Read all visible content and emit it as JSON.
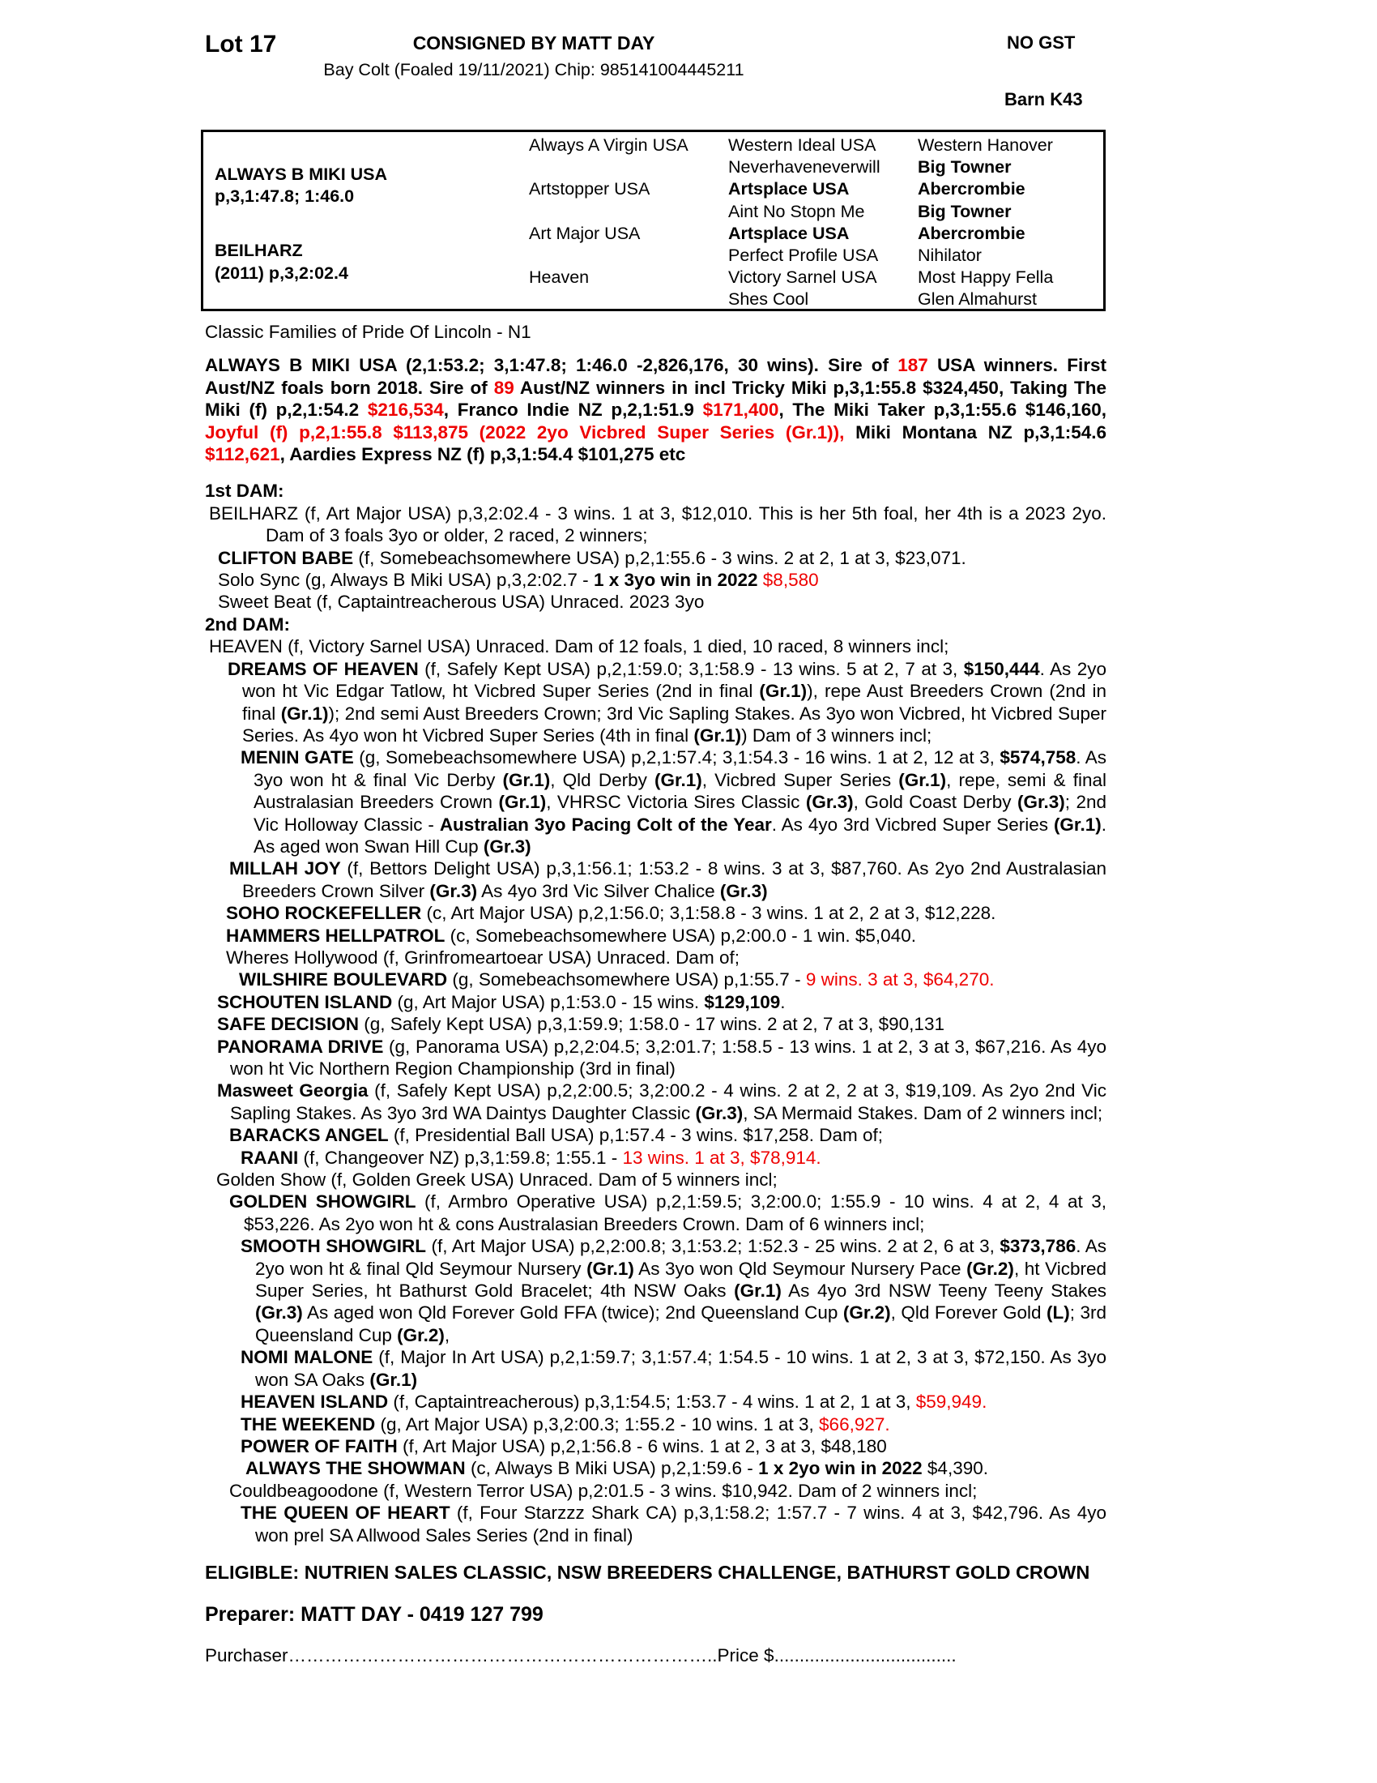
{
  "colors": {
    "red": "#ee0000",
    "text": "#000000"
  },
  "header": {
    "lot": "Lot 17",
    "consigned": "CONSIGNED BY MATT DAY",
    "foal_info": "Bay Colt (Foaled 19/11/2021) Chip: 985141004445211",
    "no_gst": "NO GST",
    "barn": "Barn K43"
  },
  "pedigree": {
    "sire": {
      "name": "ALWAYS B MIKI USA",
      "record": "p,3,1:47.8; 1:46.0"
    },
    "dam": {
      "name": "BEILHARZ",
      "record": "(2011) p,3,2:02.4"
    },
    "gen2": [
      "Always A Virgin USA",
      "Artstopper USA",
      "Art Major USA",
      "Heaven"
    ],
    "gen3": [
      {
        "name": "Western Ideal USA",
        "b": false
      },
      {
        "name": "Neverhaveneverwill",
        "b": false
      },
      {
        "name": "Artsplace USA",
        "b": true
      },
      {
        "name": "Aint No Stopn Me",
        "b": false
      },
      {
        "name": "Artsplace USA",
        "b": true
      },
      {
        "name": "Perfect Profile USA",
        "b": false
      },
      {
        "name": "Victory Sarnel USA",
        "b": false
      },
      {
        "name": "Shes Cool",
        "b": false
      }
    ],
    "gen4": [
      {
        "name": "Western Hanover",
        "b": false
      },
      {
        "name": "Big Towner",
        "b": true
      },
      {
        "name": "Abercrombie",
        "b": true
      },
      {
        "name": "Big Towner",
        "b": true
      },
      {
        "name": "Abercrombie",
        "b": true
      },
      {
        "name": "Nihilator",
        "b": false
      },
      {
        "name": "Most Happy Fella",
        "b": false
      },
      {
        "name": "Glen Almahurst",
        "b": false
      }
    ]
  },
  "entries": [
    {
      "name": "family-note",
      "mb": 14,
      "seg": [
        {
          "t": "Classic Families of Pride Of Lincoln - N1"
        }
      ]
    },
    {
      "name": "sire-summary",
      "cls": "bold",
      "mb": 18,
      "seg": [
        {
          "t": "ALWAYS B MIKI USA (2,1:53.2; 3,1:47.8; 1:46.0 -2,826,176, 30 wins). Sire of "
        },
        {
          "t": "187",
          "s": "r"
        },
        {
          "t": " USA winners. First Aust/NZ foals born 2018. Sire of "
        },
        {
          "t": "89",
          "s": "r"
        },
        {
          "t": " Aust/NZ winners in incl Tricky Miki p,3,1:55.8 $324,450, Taking The Miki (f) p,2,1:54.2 "
        },
        {
          "t": "$216,534",
          "s": "r"
        },
        {
          "t": ", Franco Indie NZ p,2,1:51.9 "
        },
        {
          "t": "$171,400",
          "s": "r"
        },
        {
          "t": ", The Miki Taker p,3,1:55.6 $146,160, "
        },
        {
          "t": "Joyful (f) p,2,1:55.8 $113,875 (2022 2yo Vicbred Super Series (Gr.1)),",
          "s": "r"
        },
        {
          "t": " Miki Montana NZ p,3,1:54.6 "
        },
        {
          "t": "$112,621",
          "s": "r"
        },
        {
          "t": ", Aardies Express NZ (f) p,3,1:54.4 $101,275 etc"
        }
      ]
    },
    {
      "name": "first-dam-heading",
      "cls": "bold",
      "seg": [
        {
          "t": "1st DAM:"
        }
      ]
    },
    {
      "name": "entry-beilharz",
      "indent": 5,
      "hang": 70,
      "seg": [
        {
          "t": "BEILHARZ (f, Art Major USA) p,3,2:02.4 - 3 wins. 1 at 3, $12,010. This is her 5th foal, her 4th is a 2023 2yo. Dam of 3 foals 3yo or older, 2 raced, 2 winners;"
        }
      ]
    },
    {
      "name": "entry-clifton-babe",
      "indent": 16,
      "hang": 30,
      "seg": [
        {
          "t": "CLIFTON BABE",
          "s": "b"
        },
        {
          "t": " (f, Somebeachsomewhere USA) p,2,1:55.6 - 3 wins. 2 at 2, 1 at 3, $23,071."
        }
      ]
    },
    {
      "name": "entry-solo-sync",
      "indent": 16,
      "hang": 30,
      "seg": [
        {
          "t": "Solo Sync (g, Always B Miki USA) p,3,2:02.7 - "
        },
        {
          "t": "1 x 3yo win in 2022 ",
          "s": "b"
        },
        {
          "t": "$8,580",
          "s": "r"
        }
      ]
    },
    {
      "name": "entry-sweet-beat",
      "indent": 16,
      "hang": 30,
      "seg": [
        {
          "t": "Sweet Beat (f, Captaintreacherous USA) Unraced. 2023 3yo"
        }
      ]
    },
    {
      "name": "second-dam-heading",
      "cls": "bold",
      "seg": [
        {
          "t": "2nd DAM:"
        }
      ]
    },
    {
      "name": "entry-heaven",
      "indent": 5,
      "hang": 40,
      "seg": [
        {
          "t": "HEAVEN (f, Victory Sarnel USA) Unraced. Dam of 12 foals, 1 died, 10 raced, 8 winners incl;"
        }
      ]
    },
    {
      "name": "entry-dreams-of-heaven",
      "indent": 28,
      "hang": 18,
      "seg": [
        {
          "t": "DREAMS OF HEAVEN",
          "s": "b"
        },
        {
          "t": " (f, Safely Kept USA) p,2,1:59.0; 3,1:58.9 - 13 wins. 5 at 2, 7 at 3, "
        },
        {
          "t": "$150,444",
          "s": "b"
        },
        {
          "t": ". As 2yo won ht Vic Edgar Tatlow, ht Vicbred Super Series (2nd in final "
        },
        {
          "t": "(Gr.1)",
          "s": "b"
        },
        {
          "t": "), repe Aust Breeders Crown (2nd in final "
        },
        {
          "t": "(Gr.1)",
          "s": "b"
        },
        {
          "t": "); 2nd semi Aust Breeders Crown; 3rd Vic Sapling Stakes. As 3yo won Vicbred, ht Vicbred Super Series. As 4yo won ht Vicbred Super Series (4th in final "
        },
        {
          "t": "(Gr.1)",
          "s": "b"
        },
        {
          "t": ") Dam of 3 winners incl;"
        }
      ]
    },
    {
      "name": "entry-menin-gate",
      "indent": 44,
      "hang": 16,
      "seg": [
        {
          "t": "MENIN GATE",
          "s": "b"
        },
        {
          "t": " (g, Somebeachsomewhere USA) p,2,1:57.4; 3,1:54.3 - 16 wins. 1 at 2, 12 at 3, "
        },
        {
          "t": "$574,758",
          "s": "b"
        },
        {
          "t": ". As 3yo won ht & final Vic Derby "
        },
        {
          "t": "(Gr.1)",
          "s": "b"
        },
        {
          "t": ", Qld Derby "
        },
        {
          "t": "(Gr.1)",
          "s": "b"
        },
        {
          "t": ", Vicbred Super Series "
        },
        {
          "t": "(Gr.1)",
          "s": "b"
        },
        {
          "t": ", repe, semi & final Australasian Breeders Crown "
        },
        {
          "t": "(Gr.1)",
          "s": "b"
        },
        {
          "t": ", VHRSC Victoria Sires Classic "
        },
        {
          "t": "(Gr.3)",
          "s": "b"
        },
        {
          "t": ", Gold Coast Derby "
        },
        {
          "t": "(Gr.3)",
          "s": "b"
        },
        {
          "t": "; 2nd Vic Holloway Classic - "
        },
        {
          "t": "Australian 3yo Pacing Colt of the Year",
          "s": "b"
        },
        {
          "t": ". As 4yo 3rd Vicbred Super Series "
        },
        {
          "t": "(Gr.1)",
          "s": "b"
        },
        {
          "t": ". As aged won Swan Hill Cup "
        },
        {
          "t": "(Gr.3)",
          "s": "b"
        }
      ]
    },
    {
      "name": "entry-millah-joy",
      "indent": 30,
      "hang": 16,
      "seg": [
        {
          "t": "MILLAH JOY",
          "s": "b"
        },
        {
          "t": " (f, Bettors Delight USA) p,3,1:56.1; 1:53.2 - 8 wins. 3 at 3, $87,760. As 2yo 2nd Australasian Breeders Crown Silver "
        },
        {
          "t": "(Gr.3)",
          "s": "b"
        },
        {
          "t": " As 4yo 3rd Vic Silver Chalice "
        },
        {
          "t": "(Gr.3)",
          "s": "b"
        }
      ]
    },
    {
      "name": "entry-soho-rockefeller",
      "indent": 26,
      "hang": 16,
      "seg": [
        {
          "t": "SOHO ROCKEFELLER",
          "s": "b"
        },
        {
          "t": " (c, Art Major USA) p,2,1:56.0; 3,1:58.8 - 3 wins. 1 at 2, 2 at 3, $12,228."
        }
      ]
    },
    {
      "name": "entry-hammers-hellpatrol",
      "indent": 26,
      "hang": 16,
      "seg": [
        {
          "t": "HAMMERS HELLPATROL",
          "s": "b"
        },
        {
          "t": " (c, Somebeachsomewhere USA) p,2:00.0 - 1 win. $5,040."
        }
      ]
    },
    {
      "name": "entry-wheres-hollywood",
      "indent": 26,
      "hang": 16,
      "seg": [
        {
          "t": "Wheres Hollywood (f, Grinfromeartoear USA) Unraced. Dam of;"
        }
      ]
    },
    {
      "name": "entry-wilshire-boulevard",
      "indent": 42,
      "hang": 16,
      "seg": [
        {
          "t": "WILSHIRE BOULEVARD",
          "s": "b"
        },
        {
          "t": " (g, Somebeachsomewhere USA) p,1:55.7 - "
        },
        {
          "t": "9 wins. 3 at 3, $64,270.",
          "s": "r"
        }
      ]
    },
    {
      "name": "entry-schouten-island",
      "indent": 15,
      "hang": 16,
      "seg": [
        {
          "t": "SCHOUTEN ISLAND",
          "s": "b"
        },
        {
          "t": " (g, Art Major USA) p,1:53.0 - 15 wins. "
        },
        {
          "t": "$129,109",
          "s": "b"
        },
        {
          "t": "."
        }
      ]
    },
    {
      "name": "entry-safe-decision",
      "indent": 15,
      "hang": 16,
      "seg": [
        {
          "t": "SAFE DECISION",
          "s": "b"
        },
        {
          "t": " (g, Safely Kept USA) p,3,1:59.9; 1:58.0 - 17 wins. 2 at 2, 7 at 3, $90,131"
        }
      ]
    },
    {
      "name": "entry-panorama-drive",
      "indent": 15,
      "hang": 16,
      "seg": [
        {
          "t": "PANORAMA DRIVE",
          "s": "b"
        },
        {
          "t": " (g, Panorama USA) p,2,2:04.5; 3,2:01.7; 1:58.5 - 13 wins. 1 at 2, 3 at 3, $67,216. As 4yo won ht Vic Northern Region Championship (3rd in final)"
        }
      ]
    },
    {
      "name": "entry-masweet-georgia",
      "indent": 15,
      "hang": 16,
      "seg": [
        {
          "t": "Masweet Georgia",
          "s": "b"
        },
        {
          "t": " (f, Safely Kept USA) p,2,2:00.5; 3,2:00.2 - 4 wins. 2 at 2, 2 at 3, $19,109. As 2yo 2nd Vic Sapling Stakes. As 3yo 3rd WA Daintys Daughter Classic "
        },
        {
          "t": "(Gr.3)",
          "s": "b"
        },
        {
          "t": ", SA Mermaid Stakes. Dam of 2 winners incl;"
        }
      ]
    },
    {
      "name": "entry-baracks-angel",
      "indent": 30,
      "hang": 16,
      "seg": [
        {
          "t": "BARACKS ANGEL",
          "s": "b"
        },
        {
          "t": " (f, Presidential Ball USA) p,1:57.4 - 3 wins. $17,258. Dam of;"
        }
      ]
    },
    {
      "name": "entry-raani",
      "indent": 44,
      "hang": 16,
      "seg": [
        {
          "t": "RAANI",
          "s": "b"
        },
        {
          "t": " (f, Changeover NZ) p,3,1:59.8; 1:55.1 - "
        },
        {
          "t": "13 wins. 1 at 3, $78,914.",
          "s": "r"
        }
      ]
    },
    {
      "name": "entry-golden-show",
      "indent": 14,
      "hang": 16,
      "seg": [
        {
          "t": "Golden Show (f, Golden Greek USA) Unraced. Dam of 5 winners incl;"
        }
      ]
    },
    {
      "name": "entry-golden-showgirl",
      "indent": 30,
      "hang": 18,
      "seg": [
        {
          "t": "GOLDEN SHOWGIRL",
          "s": "b"
        },
        {
          "t": " (f, Armbro Operative USA) p,2,1:59.5; 3,2:00.0; 1:55.9 - 10 wins. 4 at 2, 4 at 3, $53,226. As 2yo won ht & cons Australasian Breeders Crown. Dam of 6 winners incl;"
        }
      ]
    },
    {
      "name": "entry-smooth-showgirl",
      "indent": 44,
      "hang": 18,
      "seg": [
        {
          "t": "SMOOTH SHOWGIRL",
          "s": "b"
        },
        {
          "t": " (f, Art Major USA) p,2,2:00.8; 3,1:53.2; 1:52.3 - 25 wins. 2 at 2, 6 at 3, "
        },
        {
          "t": "$373,786",
          "s": "b"
        },
        {
          "t": ". As 2yo won ht & final Qld Seymour Nursery "
        },
        {
          "t": "(Gr.1)",
          "s": "b"
        },
        {
          "t": " As 3yo won Qld Seymour Nursery Pace "
        },
        {
          "t": "(Gr.2)",
          "s": "b"
        },
        {
          "t": ", ht Vicbred Super Series, ht Bathurst Gold Bracelet; 4th NSW Oaks "
        },
        {
          "t": "(Gr.1)",
          "s": "b"
        },
        {
          "t": " As 4yo 3rd NSW Teeny Teeny Stakes "
        },
        {
          "t": "(Gr.3)",
          "s": "b"
        },
        {
          "t": " As aged won Qld Forever Gold FFA (twice); 2nd Queensland Cup "
        },
        {
          "t": "(Gr.2)",
          "s": "b"
        },
        {
          "t": ", Qld Forever Gold "
        },
        {
          "t": "(L)",
          "s": "b"
        },
        {
          "t": "; 3rd Queensland Cup "
        },
        {
          "t": "(Gr.2)",
          "s": "b"
        },
        {
          "t": ","
        }
      ]
    },
    {
      "name": "entry-nomi-malone",
      "indent": 44,
      "hang": 18,
      "seg": [
        {
          "t": "NOMI MALONE",
          "s": "b"
        },
        {
          "t": " (f, Major In Art USA) p,2,1:59.7; 3,1:57.4; 1:54.5 - 10 wins. 1 at 2, 3 at 3, $72,150. As 3yo won SA Oaks "
        },
        {
          "t": "(Gr.1)",
          "s": "b"
        }
      ]
    },
    {
      "name": "entry-heaven-island",
      "indent": 44,
      "hang": 18,
      "seg": [
        {
          "t": "HEAVEN ISLAND",
          "s": "b"
        },
        {
          "t": " (f, Captaintreacherous) p,3,1:54.5; 1:53.7 - 4 wins. 1 at 2, 1 at 3, "
        },
        {
          "t": "$59,949.",
          "s": "r"
        }
      ]
    },
    {
      "name": "entry-the-weekend",
      "indent": 44,
      "hang": 18,
      "seg": [
        {
          "t": "THE WEEKEND",
          "s": "b"
        },
        {
          "t": " (g, Art Major USA) p,3,2:00.3; 1:55.2 - 10 wins. 1 at 3, "
        },
        {
          "t": "$66,927.",
          "s": "r"
        }
      ]
    },
    {
      "name": "entry-power-of-faith",
      "indent": 44,
      "hang": 18,
      "seg": [
        {
          "t": "POWER OF FAITH",
          "s": "b"
        },
        {
          "t": " (f, Art Major USA) p,2,1:56.8 - 6 wins. 1 at 2, 3 at 3, $48,180"
        }
      ]
    },
    {
      "name": "entry-always-the-showman",
      "indent": 50,
      "hang": 18,
      "seg": [
        {
          "t": "ALWAYS THE SHOWMAN",
          "s": "b"
        },
        {
          "t": " (c, Always B Miki USA) p,2,1:59.6 - "
        },
        {
          "t": "1 x 2yo win in 2022",
          "s": "b"
        },
        {
          "t": " $4,390."
        }
      ]
    },
    {
      "name": "entry-couldbeagoodone",
      "indent": 30,
      "hang": 16,
      "seg": [
        {
          "t": "Couldbeagoodone (f, Western Terror USA) p,2:01.5 - 3 wins. $10,942. Dam of 2 winners incl;"
        }
      ]
    },
    {
      "name": "entry-the-queen-of-heart",
      "indent": 44,
      "hang": 18,
      "seg": [
        {
          "t": "THE QUEEN OF HEART",
          "s": "b"
        },
        {
          "t": " (f, Four Starzzz Shark CA) p,3,1:58.2; 1:57.7 - 7 wins. 4 at 3, $42,796. As 4yo won prel SA Allwood Sales Series (2nd in final)"
        }
      ]
    },
    {
      "name": "eligible-note",
      "cls": "bold big",
      "mt": 16,
      "hang": 250,
      "seg": [
        {
          "t": "ELIGIBLE: NUTRIEN SALES CLASSIC, NSW BREEDERS CHALLENGE, BATHURST GOLD CROWN"
        }
      ]
    },
    {
      "name": "preparer-line",
      "cls": "bold preparer",
      "mt": 20,
      "seg": [
        {
          "t": "Preparer: MATT DAY - 0419 127 799"
        }
      ]
    },
    {
      "name": "purchaser-line",
      "mt": 22,
      "seg": [
        {
          "t": "Purchaser……………………………………………………………..Price $...................................."
        }
      ]
    }
  ]
}
